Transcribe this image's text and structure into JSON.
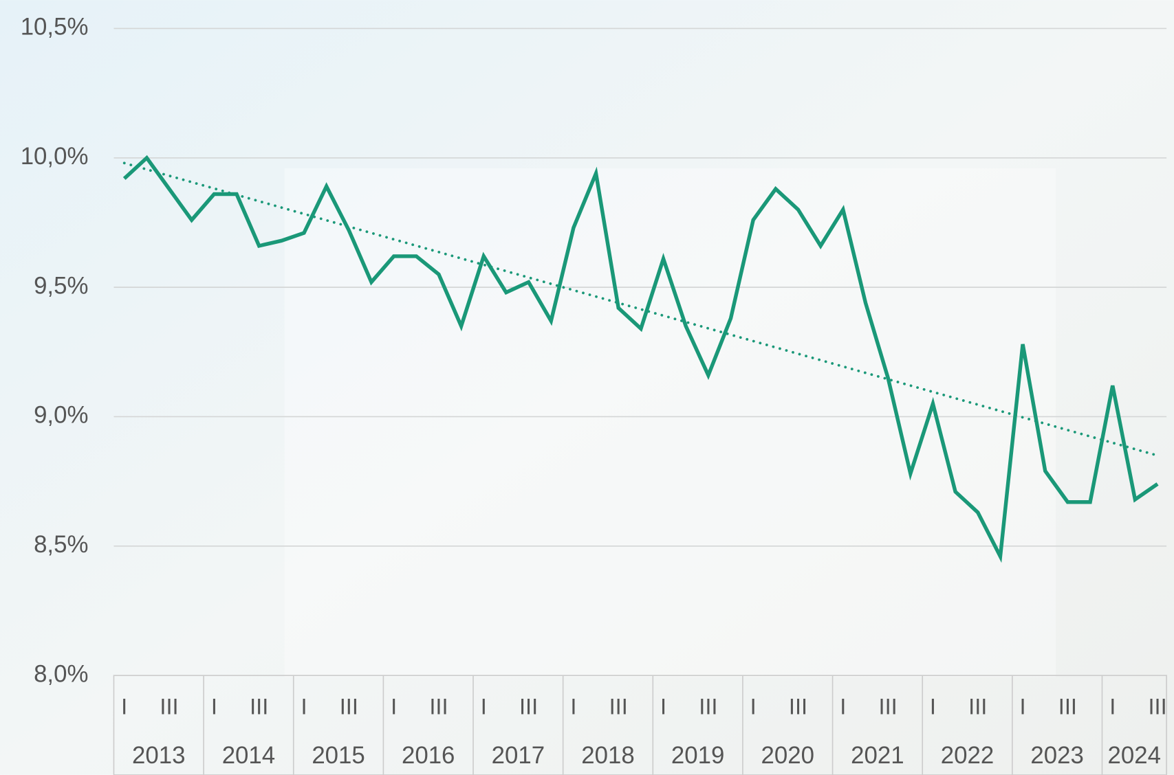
{
  "chart_data": {
    "type": "line",
    "categories": [
      "I",
      null,
      "III",
      null,
      "I",
      null,
      "III",
      null,
      "I",
      null,
      "III",
      null,
      "I",
      null,
      "III",
      null,
      "I",
      null,
      "III",
      null,
      "I",
      null,
      "III",
      null,
      "I",
      null,
      "III",
      null,
      "I",
      null,
      "III",
      null,
      "I",
      null,
      "III",
      null,
      "I",
      null,
      "III",
      null,
      "I",
      null,
      "III",
      null,
      "I",
      null,
      "III"
    ],
    "groups": [
      "2013",
      "2014",
      "2015",
      "2016",
      "2017",
      "2018",
      "2019",
      "2020",
      "2021",
      "2022",
      "2023",
      "2024"
    ],
    "series": [
      {
        "color": "#1a9878",
        "values": [
          9.92,
          10.0,
          9.88,
          9.76,
          9.86,
          9.86,
          9.66,
          9.68,
          9.71,
          9.89,
          9.72,
          9.52,
          9.62,
          9.62,
          9.55,
          9.35,
          9.62,
          9.48,
          9.52,
          9.37,
          9.73,
          9.94,
          9.42,
          9.34,
          9.61,
          9.35,
          9.16,
          9.38,
          9.76,
          9.88,
          9.8,
          9.66,
          9.8,
          9.44,
          9.15,
          8.78,
          9.05,
          8.71,
          8.63,
          8.46,
          9.28,
          8.79,
          8.67,
          8.67,
          9.12,
          8.68,
          8.74
        ]
      }
    ],
    "trendline": {
      "start": 9.98,
      "end": 8.85,
      "color": "#1a9878"
    },
    "ylim": [
      8.0,
      10.5
    ],
    "yticks": [
      {
        "value": 8.0,
        "label": "8,0%"
      },
      {
        "value": 8.5,
        "label": "8,5%"
      },
      {
        "value": 9.0,
        "label": "9,0%"
      },
      {
        "value": 9.5,
        "label": "9,5%"
      },
      {
        "value": 10.0,
        "label": "10,0%"
      },
      {
        "value": 10.5,
        "label": "10,5%"
      }
    ],
    "grid": true
  }
}
